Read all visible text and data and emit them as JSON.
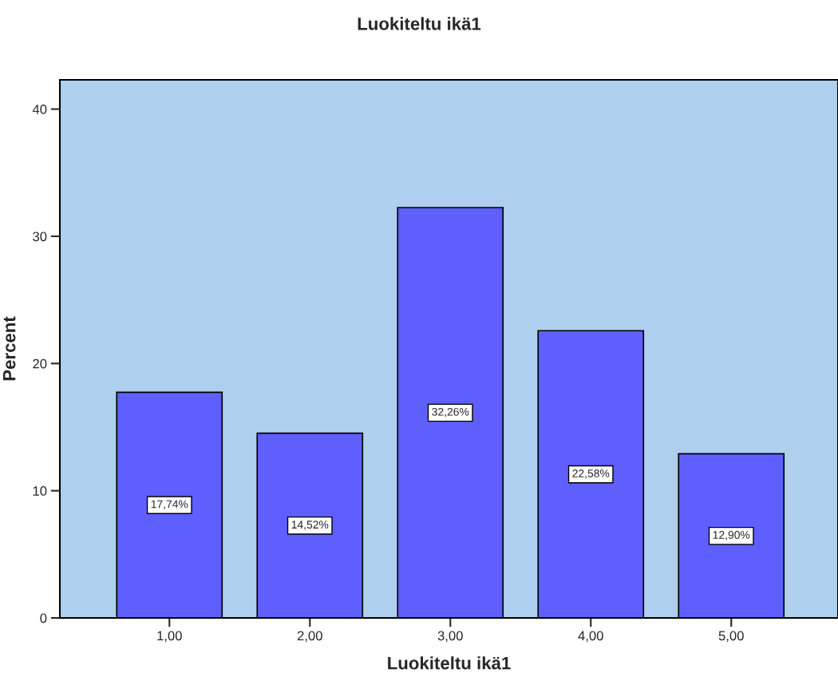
{
  "chart_data": {
    "type": "bar",
    "title": "Luokiteltu ikä1",
    "xlabel": "Luokiteltu ikä1",
    "ylabel": "Percent",
    "categories": [
      "1,00",
      "2,00",
      "3,00",
      "4,00",
      "5,00"
    ],
    "values": [
      17.74,
      14.52,
      32.26,
      22.58,
      12.9
    ],
    "value_labels": [
      "17,74%",
      "14,52%",
      "32,26%",
      "22,58%",
      "12,90%"
    ],
    "color": "#5f5fff",
    "ylim": [
      0,
      42.3
    ],
    "yticks": [
      0,
      10,
      20,
      30,
      40
    ],
    "grid": false
  }
}
